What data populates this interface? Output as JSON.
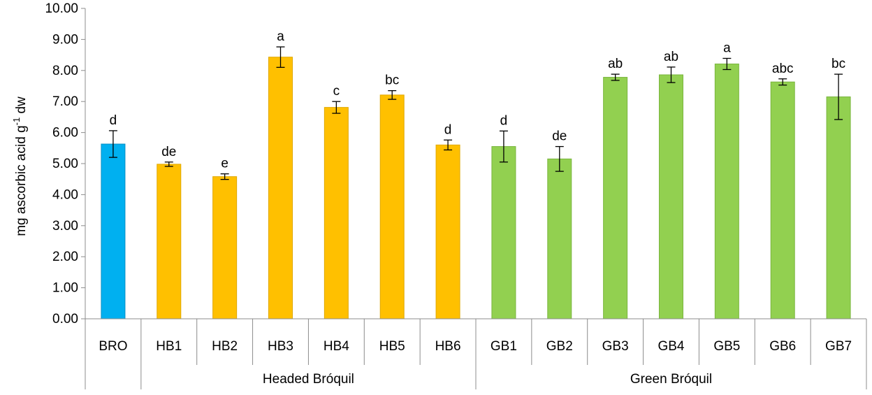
{
  "chart_data": {
    "type": "bar",
    "ylabel": "mg ascorbic acid g",
    "ylabel_sup": "-1",
    "ylabel_tail": " dw",
    "ylim": [
      0,
      10
    ],
    "ytick_step": 1,
    "ytick_labels": [
      "0.00",
      "1.00",
      "2.00",
      "3.00",
      "4.00",
      "5.00",
      "6.00",
      "7.00",
      "8.00",
      "9.00",
      "10.00"
    ],
    "grid": false,
    "categories": [
      "BRO",
      "HB1",
      "HB2",
      "HB3",
      "HB4",
      "HB5",
      "HB6",
      "GB1",
      "GB2",
      "GB3",
      "GB4",
      "GB5",
      "GB6",
      "GB7"
    ],
    "values": [
      5.63,
      4.98,
      4.58,
      8.43,
      6.81,
      7.21,
      5.6,
      5.55,
      5.15,
      7.78,
      7.86,
      8.21,
      7.63,
      7.15
    ],
    "errors": [
      0.43,
      0.07,
      0.09,
      0.33,
      0.19,
      0.14,
      0.16,
      0.5,
      0.4,
      0.1,
      0.25,
      0.18,
      0.1,
      0.73
    ],
    "significance": [
      "d",
      "de",
      "e",
      "a",
      "c",
      "bc",
      "d",
      "d",
      "de",
      "ab",
      "ab",
      "a",
      "abc",
      "bc"
    ],
    "colors": [
      "#00b0f0",
      "#ffc000",
      "#ffc000",
      "#ffc000",
      "#ffc000",
      "#ffc000",
      "#ffc000",
      "#92d050",
      "#92d050",
      "#92d050",
      "#92d050",
      "#92d050",
      "#92d050",
      "#92d050"
    ],
    "bar_edge_colors": [
      "#0a8fc4",
      "#e0a800",
      "#e0a800",
      "#e0a800",
      "#e0a800",
      "#e0a800",
      "#e0a800",
      "#79b53e",
      "#79b53e",
      "#79b53e",
      "#79b53e",
      "#79b53e",
      "#79b53e",
      "#79b53e"
    ],
    "groups": [
      {
        "label": "",
        "start": 0,
        "end": 0
      },
      {
        "label": "Headed Bróquil",
        "start": 1,
        "end": 6
      },
      {
        "label": "Green Bróquil",
        "start": 7,
        "end": 13
      }
    ]
  }
}
